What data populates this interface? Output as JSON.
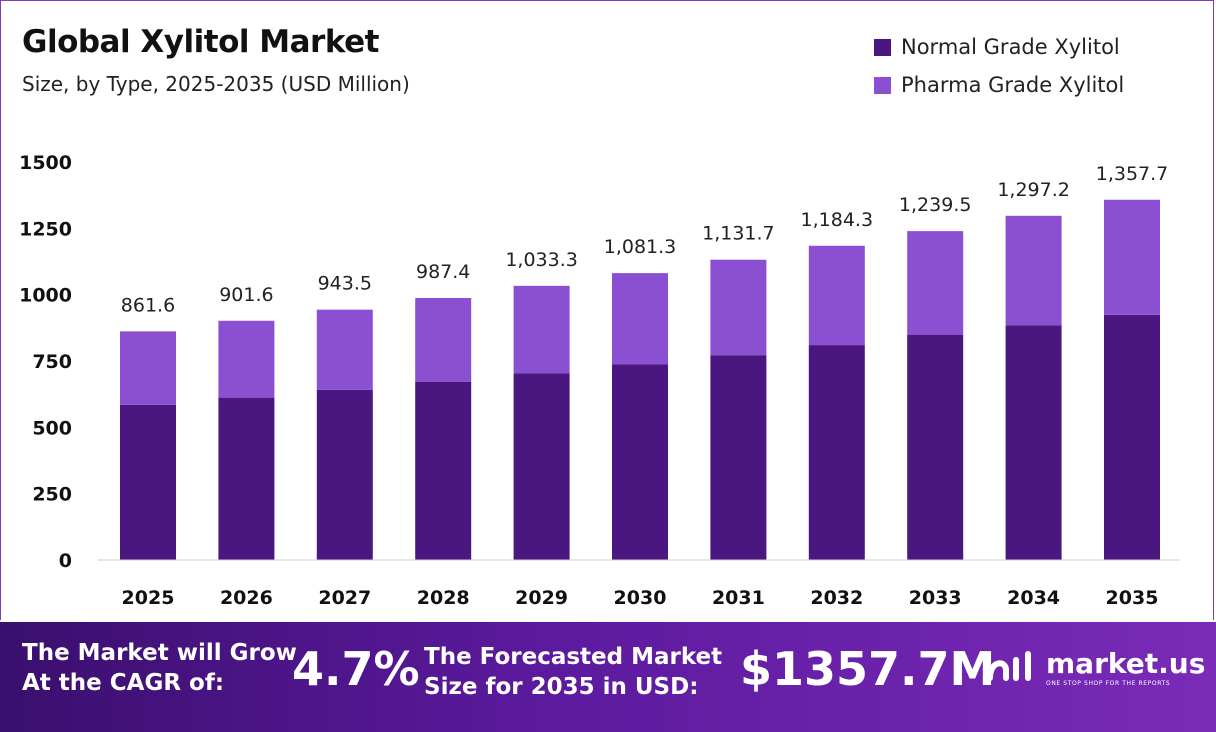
{
  "header": {
    "title": "Global Xylitol  Market",
    "subtitle": "Size, by Type, 2025-2035 (USD Million)"
  },
  "legend": {
    "items": [
      {
        "label": "Normal Grade Xylitol",
        "color": "#4a1680"
      },
      {
        "label": "Pharma Grade Xylitol",
        "color": "#8b4fd2"
      }
    ]
  },
  "chart_data": {
    "type": "bar",
    "stacked": true,
    "categories": [
      "2025",
      "2026",
      "2027",
      "2028",
      "2029",
      "2030",
      "2031",
      "2032",
      "2033",
      "2034",
      "2035"
    ],
    "series": [
      {
        "name": "Normal Grade Xylitol",
        "color": "#4a1680",
        "values": [
          585,
          612,
          641,
          672,
          703,
          738,
          772,
          810,
          848,
          884,
          924
        ]
      },
      {
        "name": "Pharma Grade Xylitol",
        "color": "#8b4fd2",
        "values": [
          276.6,
          289.6,
          302.5,
          315.4,
          330.3,
          343.3,
          359.7,
          374.3,
          391.5,
          413.2,
          433.7
        ]
      }
    ],
    "totals": [
      "861.6",
      "901.6",
      "943.5",
      "987.4",
      "1,033.3",
      "1,081.3",
      "1,131.7",
      "1,184.3",
      "1,239.5",
      "1,297.2",
      "1,357.7"
    ],
    "yticks": [
      "0",
      "250",
      "500",
      "750",
      "1000",
      "1250",
      "1500"
    ],
    "ylim": [
      0,
      1500
    ],
    "grid": false,
    "legend_position": "top-right"
  },
  "footer": {
    "cagr_label_line1": "The Market will Grow",
    "cagr_label_line2": "At the CAGR of:",
    "cagr_value": "4.7%",
    "forecast_label_line1": "The Forecasted Market",
    "forecast_label_line2": "Size for 2035 in USD:",
    "forecast_value": "$1357.7M",
    "logo_text": "market.us",
    "logo_tagline": "ONE STOP SHOP FOR THE REPORTS"
  }
}
